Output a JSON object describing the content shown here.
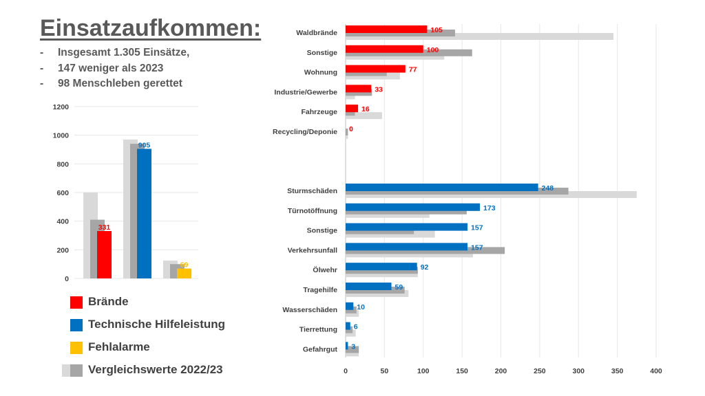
{
  "title": "Einsatzaufkommen:",
  "bullets": [
    "Insgesamt 1.305 Einsätze,",
    "147 weniger als 2023",
    "98 Menschleben gerettet"
  ],
  "colors": {
    "braende": "#ff0000",
    "technische_hilfeleistung": "#0070c0",
    "fehlalarme": "#ffc000",
    "vergleich_2023": "#a6a6a6",
    "vergleich_2022": "#d9d9d9",
    "grid": "#e7e7e7",
    "axis_text": "#404040"
  },
  "legend": [
    {
      "label": "Brände",
      "color": "#ff0000",
      "compare": false
    },
    {
      "label": "Technische Hilfeleistung",
      "color": "#0070c0",
      "compare": false
    },
    {
      "label": "Fehlalarme",
      "color": "#ffc000",
      "compare": false
    },
    {
      "label": "Vergleichswerte 2022/23",
      "color": "#a6a6a6",
      "compare": true
    }
  ],
  "chart_data": [
    {
      "type": "bar",
      "orientation": "vertical",
      "title": "",
      "xlabel": "",
      "ylabel": "",
      "ylim": [
        0,
        1200
      ],
      "yticks": [
        0,
        200,
        400,
        600,
        800,
        1000,
        1200
      ],
      "grid": true,
      "categories": [
        "Brände",
        "Technische Hilfeleistung",
        "Fehlalarme"
      ],
      "series": [
        {
          "values": [
            600,
            970,
            125
          ]
        },
        {
          "values": [
            410,
            940,
            100
          ]
        },
        {
          "values": [
            331,
            905,
            69
          ]
        }
      ],
      "data_labels": [
        "331",
        "905",
        "69"
      ]
    },
    {
      "type": "bar",
      "orientation": "horizontal",
      "title": "",
      "xlabel": "",
      "ylabel": "",
      "xlim": [
        0,
        400
      ],
      "xticks": [
        0,
        50,
        100,
        150,
        200,
        250,
        300,
        350,
        400
      ],
      "grid": true,
      "groups": [
        {
          "categories": [
            "Waldbrände",
            "Sonstige",
            "Wohnung",
            "Industrie/Gewerbe",
            "Fahrzeuge",
            "Recycling/Deponie"
          ],
          "values": [
            105,
            100,
            77,
            33,
            16,
            0
          ],
          "data_labels": [
            "105",
            "100",
            "77",
            "33",
            "16",
            "0"
          ],
          "compare_2023": [
            141,
            163,
            53,
            34,
            12,
            3
          ],
          "compare_2022": [
            345,
            127,
            70,
            12,
            47,
            3
          ],
          "color": "#ff0000"
        },
        {
          "categories": [
            "Sturmschäden",
            "Türnotöffnung",
            "Sonstige",
            "Verkehrsunfall",
            "Ölwehr",
            "Tragehilfe",
            "Wasserschäden",
            "Tierrettung",
            "Gefahrgut"
          ],
          "values": [
            248,
            173,
            157,
            157,
            92,
            59,
            10,
            6,
            3
          ],
          "data_labels": [
            "248",
            "173",
            "157",
            "157",
            "92",
            "59",
            "10",
            "6",
            "3"
          ],
          "compare_2023": [
            287,
            156,
            88,
            205,
            93,
            76,
            14,
            9,
            17
          ],
          "compare_2022": [
            375,
            108,
            115,
            164,
            93,
            81,
            17,
            13,
            17
          ],
          "color": "#0070c0"
        }
      ]
    }
  ]
}
